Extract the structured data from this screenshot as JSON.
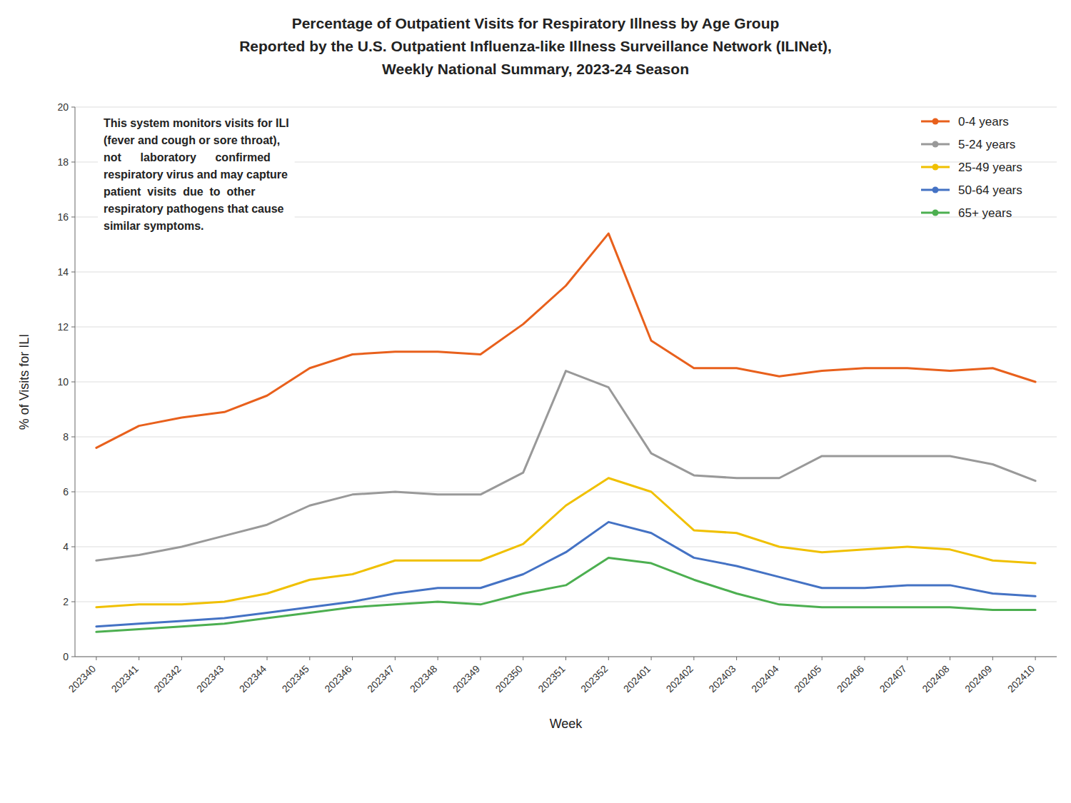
{
  "chart_data": {
    "type": "line",
    "title": [
      "Percentage of Outpatient Visits for Respiratory Illness by Age Group",
      "Reported by the U.S. Outpatient Influenza-like Illness Surveillance Network (ILINet),",
      "Weekly National Summary, 2023-24 Season"
    ],
    "x_label": "Week",
    "y_label": "% of Visits for ILI",
    "annotation": [
      "This system monitors visits for ILI",
      "(fever and cough or sore throat),",
      "not      laboratory      confirmed",
      "respiratory virus and may capture",
      "patient  visits  due  to  other",
      "respiratory pathogens that cause",
      "similar symptoms."
    ],
    "categories": [
      "202340",
      "202341",
      "202342",
      "202343",
      "202344",
      "202345",
      "202346",
      "202347",
      "202348",
      "202349",
      "202350",
      "202351",
      "202352",
      "202401",
      "202402",
      "202403",
      "202404",
      "202405",
      "202406",
      "202407",
      "202408",
      "202409",
      "202410"
    ],
    "series": [
      {
        "name": "0-4 years",
        "color": "#E8601C",
        "values": [
          7.6,
          8.4,
          8.7,
          8.9,
          9.5,
          10.5,
          11.0,
          11.1,
          11.1,
          11.0,
          12.1,
          13.5,
          15.4,
          11.5,
          10.5,
          10.5,
          10.2,
          10.4,
          10.5,
          10.5,
          10.4,
          10.5,
          10.0
        ]
      },
      {
        "name": "5-24 years",
        "color": "#999999",
        "values": [
          3.5,
          3.7,
          4.0,
          4.4,
          4.8,
          5.5,
          5.9,
          6.0,
          5.9,
          5.9,
          6.7,
          10.4,
          9.8,
          7.4,
          6.6,
          6.5,
          6.5,
          7.3,
          7.3,
          7.3,
          7.3,
          7.0,
          6.4
        ]
      },
      {
        "name": "25-49 years",
        "color": "#F0C000",
        "values": [
          1.8,
          1.9,
          1.9,
          2.0,
          2.3,
          2.8,
          3.0,
          3.5,
          3.5,
          3.5,
          4.1,
          5.5,
          6.5,
          6.0,
          4.6,
          4.5,
          4.0,
          3.8,
          3.9,
          4.0,
          3.9,
          3.5,
          3.4
        ]
      },
      {
        "name": "50-64 years",
        "color": "#4472C4",
        "values": [
          1.1,
          1.2,
          1.3,
          1.4,
          1.6,
          1.8,
          2.0,
          2.3,
          2.5,
          2.5,
          3.0,
          3.8,
          4.9,
          4.5,
          3.6,
          3.3,
          2.9,
          2.5,
          2.5,
          2.6,
          2.6,
          2.3,
          2.2
        ]
      },
      {
        "name": "65+ years",
        "color": "#4CAF50",
        "values": [
          0.9,
          1.0,
          1.1,
          1.2,
          1.4,
          1.6,
          1.8,
          1.9,
          2.0,
          1.9,
          2.3,
          2.6,
          3.6,
          3.4,
          2.8,
          2.3,
          1.9,
          1.8,
          1.8,
          1.8,
          1.8,
          1.7,
          1.7
        ]
      }
    ],
    "ylim": [
      0,
      20
    ],
    "yticks": [
      0,
      2,
      4,
      6,
      8,
      10,
      12,
      14,
      16,
      18,
      20
    ],
    "grid": true,
    "legend": "upper right"
  }
}
